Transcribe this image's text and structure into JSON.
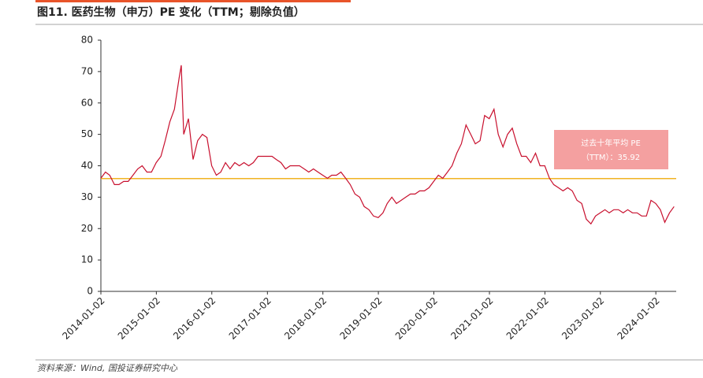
{
  "chart_data": {
    "type": "line",
    "title": "图11. 医药生物（申万）PE 变化（TTM；剔除负值）",
    "source": "资料来源：Wind, 国投证券研究中心",
    "x": [
      "2014-01-02",
      "2014-02-01",
      "2014-03-01",
      "2014-04-01",
      "2014-05-01",
      "2014-06-01",
      "2014-07-01",
      "2014-08-01",
      "2014-09-01",
      "2014-10-01",
      "2014-11-01",
      "2014-12-01",
      "2015-01-01",
      "2015-02-01",
      "2015-03-01",
      "2015-04-01",
      "2015-05-01",
      "2015-06-01",
      "2015-06-15",
      "2015-07-01",
      "2015-08-01",
      "2015-09-01",
      "2015-10-01",
      "2015-11-01",
      "2015-12-01",
      "2016-01-01",
      "2016-02-01",
      "2016-03-01",
      "2016-04-01",
      "2016-05-01",
      "2016-06-01",
      "2016-07-01",
      "2016-08-01",
      "2016-09-01",
      "2016-10-01",
      "2016-11-01",
      "2016-12-01",
      "2017-01-01",
      "2017-02-01",
      "2017-03-01",
      "2017-04-01",
      "2017-05-01",
      "2017-06-01",
      "2017-07-01",
      "2017-08-01",
      "2017-09-01",
      "2017-10-01",
      "2017-11-01",
      "2017-12-01",
      "2018-01-01",
      "2018-02-01",
      "2018-03-01",
      "2018-04-01",
      "2018-05-01",
      "2018-06-01",
      "2018-07-01",
      "2018-08-01",
      "2018-09-01",
      "2018-10-01",
      "2018-11-01",
      "2018-12-01",
      "2019-01-01",
      "2019-02-01",
      "2019-03-01",
      "2019-04-01",
      "2019-05-01",
      "2019-06-01",
      "2019-07-01",
      "2019-08-01",
      "2019-09-01",
      "2019-10-01",
      "2019-11-01",
      "2019-12-01",
      "2020-01-01",
      "2020-02-01",
      "2020-03-01",
      "2020-04-01",
      "2020-05-01",
      "2020-06-01",
      "2020-07-01",
      "2020-08-01",
      "2020-09-01",
      "2020-10-01",
      "2020-11-01",
      "2020-12-01",
      "2021-01-01",
      "2021-02-01",
      "2021-03-01",
      "2021-04-01",
      "2021-05-01",
      "2021-06-01",
      "2021-07-01",
      "2021-08-01",
      "2021-09-01",
      "2021-10-01",
      "2021-11-01",
      "2021-12-01",
      "2022-01-01",
      "2022-02-01",
      "2022-03-01",
      "2022-04-01",
      "2022-05-01",
      "2022-06-01",
      "2022-07-01",
      "2022-08-01",
      "2022-09-01",
      "2022-10-01",
      "2022-11-01",
      "2022-12-01",
      "2023-01-01",
      "2023-02-01",
      "2023-03-01",
      "2023-04-01",
      "2023-05-01",
      "2023-06-01",
      "2023-07-01",
      "2023-08-01",
      "2023-09-01",
      "2023-10-01",
      "2023-11-01",
      "2023-12-01",
      "2024-01-01",
      "2024-02-01",
      "2024-03-01",
      "2024-04-01",
      "2024-05-01"
    ],
    "series": [
      {
        "color": "#c8102e",
        "values": [
          36,
          38,
          37,
          34,
          34,
          35,
          35,
          37,
          39,
          40,
          38,
          38,
          41,
          43,
          48,
          54,
          58,
          68,
          72,
          50,
          55,
          42,
          48,
          50,
          49,
          40,
          37,
          38,
          41,
          39,
          41,
          40,
          41,
          40,
          41,
          43,
          43,
          43,
          43,
          42,
          41,
          39,
          40,
          40,
          40,
          39,
          38,
          39,
          38,
          37,
          36,
          37,
          37,
          38,
          36,
          34,
          31,
          30,
          27,
          26,
          24,
          23.5,
          25,
          28,
          30,
          28,
          29,
          30,
          31,
          31,
          32,
          32,
          33,
          35,
          37,
          36,
          38,
          40,
          44,
          47,
          53,
          50,
          47,
          48,
          56,
          55,
          58,
          50,
          46,
          50,
          52,
          47,
          43,
          43,
          41,
          44,
          40,
          40,
          36,
          34,
          33,
          32,
          33,
          32,
          29,
          28,
          23,
          21.5,
          24,
          25,
          26,
          25,
          26,
          26,
          25,
          26,
          25,
          25,
          24,
          24,
          29,
          28,
          26,
          22,
          25,
          27
        ]
      }
    ],
    "annotation": {
      "text": "过去十年平均 PE",
      "label": "（TTM）：35.92",
      "value": 35.92,
      "color": "#f0b323"
    },
    "xlim": [
      "2014-01-02",
      "2024-05-15"
    ],
    "xticks": [
      "2014-01-02",
      "2015-01-02",
      "2016-01-02",
      "2017-01-02",
      "2018-01-02",
      "2019-01-02",
      "2020-01-02",
      "2021-01-02",
      "2022-01-02",
      "2023-01-02",
      "2024-01-02"
    ],
    "ylim": [
      0,
      80
    ],
    "yticks": [
      0,
      10,
      20,
      30,
      40,
      50,
      60,
      70,
      80
    ]
  }
}
